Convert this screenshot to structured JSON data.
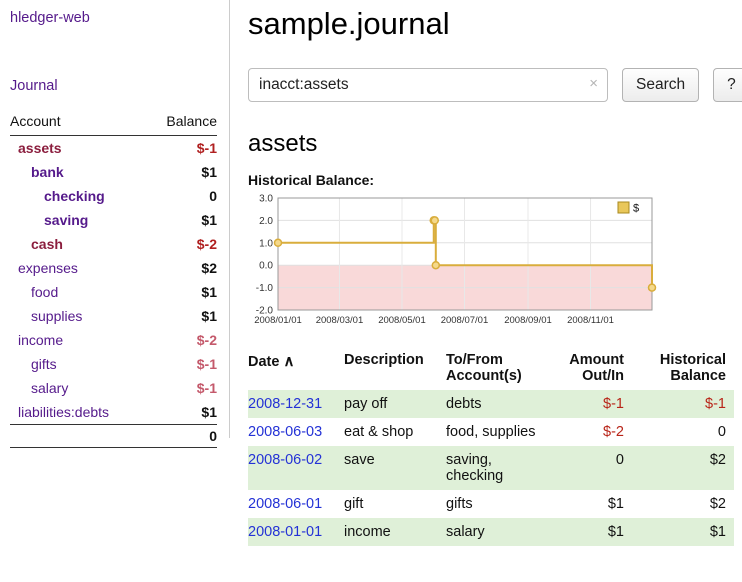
{
  "app": {
    "title": "hledger-web"
  },
  "colors": {
    "link_purple": "#551a8b",
    "negative_account_name": "#8b1e3e",
    "negative_amount_strong": "#b02020",
    "negative_amount_soft": "#c4596b",
    "date_link_blue": "#2432d6",
    "shaded_row_green": "#dff0d8",
    "chart_line_gold": "#d9ad3c",
    "negative_region_pink": "#f9d9d9"
  },
  "sidebar": {
    "journal_link": "Journal",
    "accounts_table": {
      "account_header": "Account",
      "balance_header": "Balance",
      "rows": [
        {
          "name": "assets",
          "balance": "$-1",
          "indent": 0,
          "bold": true,
          "name_negative": true,
          "balance_tone": "strong-negative"
        },
        {
          "name": "bank",
          "balance": "$1",
          "indent": 1,
          "bold": true,
          "name_negative": false,
          "balance_tone": "normal"
        },
        {
          "name": "checking",
          "balance": "0",
          "indent": 2,
          "bold": true,
          "name_negative": false,
          "balance_tone": "normal"
        },
        {
          "name": "saving",
          "balance": "$1",
          "indent": 2,
          "bold": true,
          "name_negative": false,
          "balance_tone": "normal"
        },
        {
          "name": "cash",
          "balance": "$-2",
          "indent": 1,
          "bold": true,
          "name_negative": true,
          "balance_tone": "strong-negative"
        },
        {
          "name": "expenses",
          "balance": "$2",
          "indent": 0,
          "bold": false,
          "name_negative": false,
          "balance_tone": "normal"
        },
        {
          "name": "food",
          "balance": "$1",
          "indent": 1,
          "bold": false,
          "name_negative": false,
          "balance_tone": "normal"
        },
        {
          "name": "supplies",
          "balance": "$1",
          "indent": 1,
          "bold": false,
          "name_negative": false,
          "balance_tone": "normal"
        },
        {
          "name": "income",
          "balance": "$-2",
          "indent": 0,
          "bold": false,
          "name_negative": false,
          "balance_tone": "soft-negative"
        },
        {
          "name": "gifts",
          "balance": "$-1",
          "indent": 1,
          "bold": false,
          "name_negative": false,
          "balance_tone": "soft-negative"
        },
        {
          "name": "salary",
          "balance": "$-1",
          "indent": 1,
          "bold": false,
          "name_negative": false,
          "balance_tone": "soft-negative"
        },
        {
          "name": "liabilities:debts",
          "balance": "$1",
          "indent": 0,
          "bold": false,
          "name_negative": false,
          "balance_tone": "normal"
        }
      ],
      "total": "0"
    }
  },
  "main": {
    "title": "sample.journal",
    "search": {
      "value": "inacct:assets",
      "clear_label": "×",
      "search_button": "Search",
      "help_button": "?"
    },
    "account_heading": "assets",
    "chart_label": "Historical Balance:"
  },
  "chart_data": {
    "type": "line",
    "title": "Historical Balance",
    "legend_label": "$",
    "legend_position": "top-right",
    "ylim": [
      -2.0,
      3.0
    ],
    "yticks": [
      3.0,
      2.0,
      1.0,
      0.0,
      -1.0,
      -2.0
    ],
    "x_range": [
      "2008-01-01",
      "2008-12-31"
    ],
    "xticks": [
      {
        "date": "2008-01-01",
        "label": "2008/01/01"
      },
      {
        "date": "2008-03-01",
        "label": "2008/03/01"
      },
      {
        "date": "2008-05-01",
        "label": "2008/05/01"
      },
      {
        "date": "2008-07-01",
        "label": "2008/07/01"
      },
      {
        "date": "2008-09-01",
        "label": "2008/09/01"
      },
      {
        "date": "2008-11-01",
        "label": "2008/11/01"
      }
    ],
    "series": [
      {
        "name": "$",
        "step": "after",
        "points": [
          {
            "date": "2008-01-01",
            "value": 1
          },
          {
            "date": "2008-06-01",
            "value": 2
          },
          {
            "date": "2008-06-02",
            "value": 2
          },
          {
            "date": "2008-06-03",
            "value": 0
          },
          {
            "date": "2008-12-31",
            "value": -1
          }
        ]
      }
    ]
  },
  "register_table": {
    "headers": {
      "date": "Date",
      "sort_indicator": "∧",
      "description": "Description",
      "accounts": "To/From Account(s)",
      "amount": "Amount Out/In",
      "balance": "Historical Balance"
    },
    "rows": [
      {
        "date": "2008-12-31",
        "description": "pay off",
        "accounts": "debts",
        "amount": "$-1",
        "amount_negative": true,
        "balance": "$-1",
        "balance_negative": true,
        "shaded": true
      },
      {
        "date": "2008-06-03",
        "description": "eat & shop",
        "accounts": "food, supplies",
        "amount": "$-2",
        "amount_negative": true,
        "balance": "0",
        "balance_negative": false,
        "shaded": false
      },
      {
        "date": "2008-06-02",
        "description": "save",
        "accounts": "saving, checking",
        "amount": "0",
        "amount_negative": false,
        "balance": "$2",
        "balance_negative": false,
        "shaded": true
      },
      {
        "date": "2008-06-01",
        "description": "gift",
        "accounts": "gifts",
        "amount": "$1",
        "amount_negative": false,
        "balance": "$2",
        "balance_negative": false,
        "shaded": false
      },
      {
        "date": "2008-01-01",
        "description": "income",
        "accounts": "salary",
        "amount": "$1",
        "amount_negative": false,
        "balance": "$1",
        "balance_negative": false,
        "shaded": true
      }
    ]
  }
}
